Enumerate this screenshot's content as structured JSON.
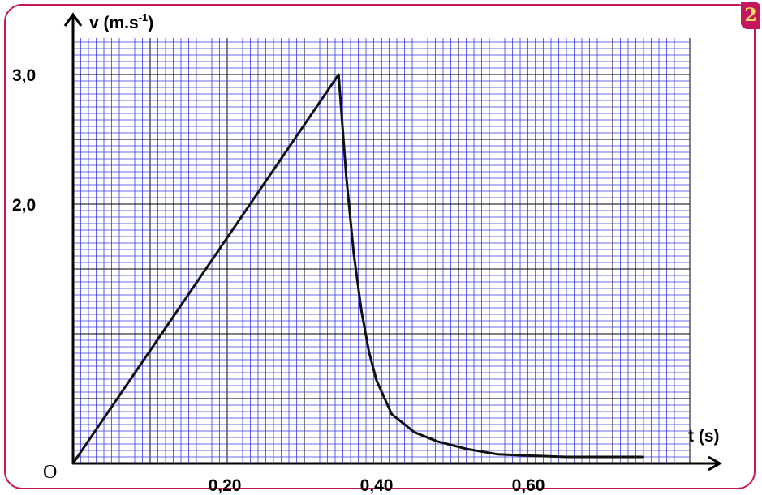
{
  "badge": "2",
  "chart_data": {
    "type": "line",
    "ylabel_main": "v (m.s",
    "ylabel_sup": "-1",
    "ylabel_end": ")",
    "xlabel": "t (s)",
    "origin_label": "O",
    "xlim": [
      0,
      0.8
    ],
    "ylim": [
      0,
      3.2
    ],
    "x_ticks": [
      {
        "value": 0.2,
        "label": "0,20"
      },
      {
        "value": 0.4,
        "label": "0,40"
      },
      {
        "value": 0.6,
        "label": "0,60"
      }
    ],
    "y_ticks": [
      {
        "value": 2.0,
        "label": "2,0"
      },
      {
        "value": 3.0,
        "label": "3,0"
      }
    ],
    "grid": true,
    "series": [
      {
        "color": "#111111",
        "x": [
          0.0,
          0.35,
          0.36,
          0.37,
          0.38,
          0.39,
          0.4,
          0.42,
          0.45,
          0.48,
          0.52,
          0.56,
          0.6,
          0.65,
          0.7,
          0.75
        ],
        "y": [
          0.0,
          3.0,
          2.22,
          1.62,
          1.18,
          0.86,
          0.64,
          0.38,
          0.24,
          0.17,
          0.11,
          0.07,
          0.06,
          0.05,
          0.05,
          0.05
        ]
      }
    ]
  }
}
